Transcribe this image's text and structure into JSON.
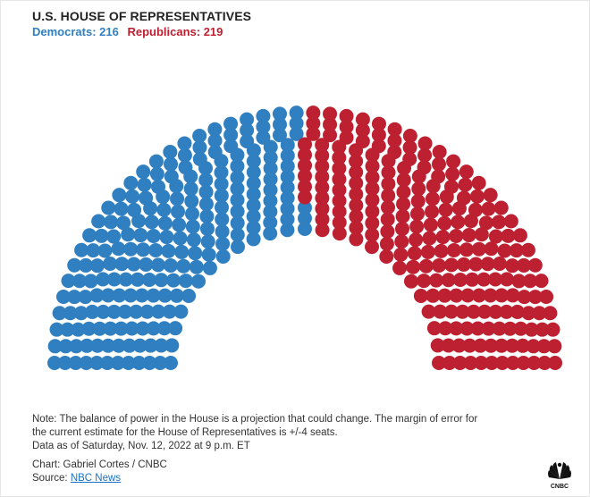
{
  "header": {
    "title": "U.S. HOUSE OF REPRESENTATIVES",
    "democrats_label": "Democrats: 216",
    "republicans_label": "Republicans: 219"
  },
  "notes": {
    "line1": "Note: The balance of power in the House is a projection that could change. The margin of error for",
    "line2": "the current estimate for the House of Representatives is +/-4 seats.",
    "line3": "Data as of Saturday, Nov. 12, 2022 at 9 p.m. ET"
  },
  "credits": {
    "chart_by": "Chart: Gabriel Cortes / CNBC",
    "source_prefix": "Source: ",
    "source_link": "NBC News"
  },
  "logo": {
    "text": "CNBC"
  },
  "colors": {
    "democrats": "#2f7fc1",
    "republicans": "#bd2030"
  },
  "chart_data": {
    "type": "parliament",
    "title": "U.S. HOUSE OF REPRESENTATIVES",
    "series": [
      {
        "name": "Democrats",
        "value": 216,
        "color": "#2f7fc1"
      },
      {
        "name": "Republicans",
        "value": 219,
        "color": "#bd2030"
      }
    ],
    "total_seats": 435
  }
}
